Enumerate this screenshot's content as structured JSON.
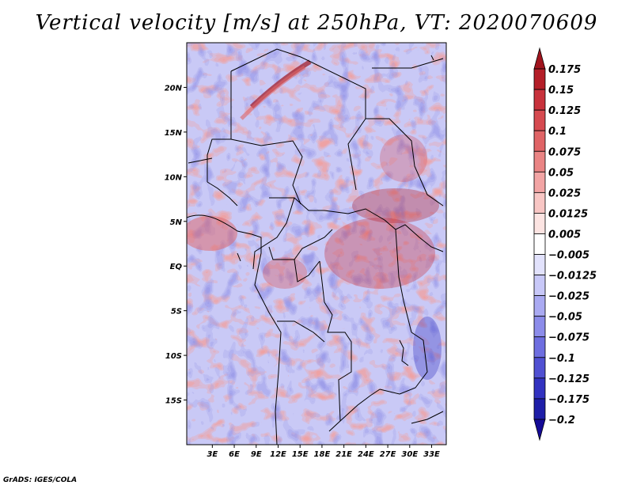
{
  "title": "Vertical velocity [m/s] at 250hPa, VT: 2020070609",
  "credit": "GrADS: IGES/COLA",
  "map": {
    "lon_range": [
      -0.5,
      35.0
    ],
    "lat_range": [
      -20.0,
      25.0
    ],
    "lon_ticks": [
      {
        "value": 3,
        "label": "3E"
      },
      {
        "value": 6,
        "label": "6E"
      },
      {
        "value": 9,
        "label": "9E"
      },
      {
        "value": 12,
        "label": "12E"
      },
      {
        "value": 15,
        "label": "15E"
      },
      {
        "value": 18,
        "label": "18E"
      },
      {
        "value": 21,
        "label": "21E"
      },
      {
        "value": 24,
        "label": "24E"
      },
      {
        "value": 27,
        "label": "27E"
      },
      {
        "value": 30,
        "label": "30E"
      },
      {
        "value": 33,
        "label": "33E"
      }
    ],
    "lat_ticks": [
      {
        "value": 20,
        "label": "20N"
      },
      {
        "value": 15,
        "label": "15N"
      },
      {
        "value": 10,
        "label": "10N"
      },
      {
        "value": 5,
        "label": "5N"
      },
      {
        "value": 0,
        "label": "EQ"
      },
      {
        "value": -5,
        "label": "5S"
      },
      {
        "value": -10,
        "label": "10S"
      },
      {
        "value": -15,
        "label": "15S"
      }
    ]
  },
  "colorbar": {
    "levels": [
      "0.175",
      "0.15",
      "0.125",
      "0.1",
      "0.075",
      "0.05",
      "0.025",
      "0.0125",
      "0.005",
      "−0.005",
      "−0.0125",
      "−0.025",
      "−0.05",
      "−0.075",
      "−0.1",
      "−0.125",
      "−0.175",
      "−0.2"
    ],
    "colors": [
      "#a0141e",
      "#b41e28",
      "#c8323c",
      "#d64a50",
      "#e06466",
      "#ea8484",
      "#f2a4a4",
      "#f8c6c4",
      "#fce4e2",
      "#ffffff",
      "#e2e2fc",
      "#c8c8f8",
      "#aaaaf2",
      "#8c8cea",
      "#6e6ee0",
      "#5050d2",
      "#3232c0",
      "#1e1ea8",
      "#140a96"
    ]
  }
}
